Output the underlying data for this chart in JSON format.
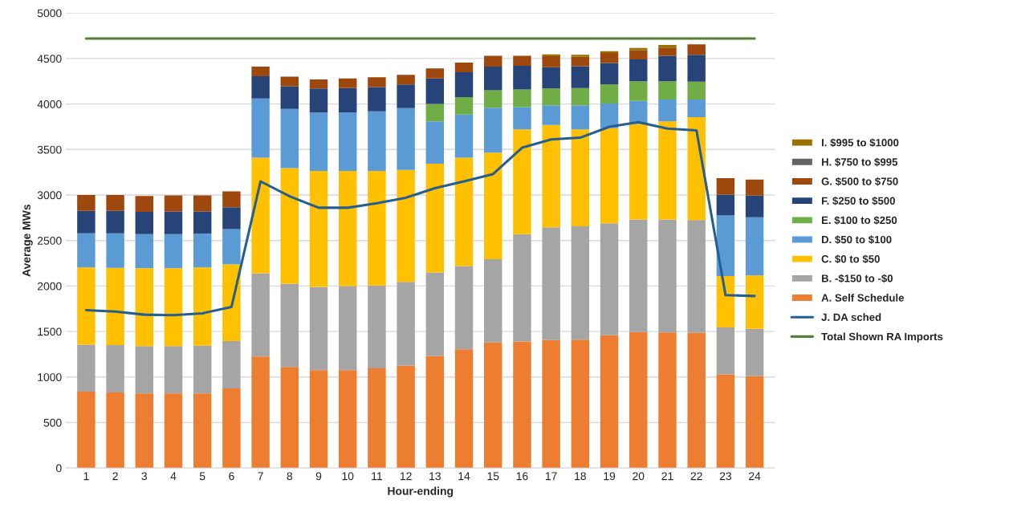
{
  "chart_data": {
    "type": "bar",
    "stacked": true,
    "xlabel": "Hour-ending",
    "ylabel": "Average MWs",
    "categories": [
      "1",
      "2",
      "3",
      "4",
      "5",
      "6",
      "7",
      "8",
      "9",
      "10",
      "11",
      "12",
      "13",
      "14",
      "15",
      "16",
      "17",
      "18",
      "19",
      "20",
      "21",
      "22",
      "23",
      "24"
    ],
    "ylim": [
      0,
      5000
    ],
    "yticks": [
      0,
      500,
      1000,
      1500,
      2000,
      2500,
      3000,
      3500,
      4000,
      4500,
      5000
    ],
    "grid": "y",
    "legend": "right",
    "series": [
      {
        "name": "A. Self Schedule",
        "color": "#ed7d31",
        "values": [
          840,
          830,
          820,
          820,
          820,
          875,
          1225,
          1110,
          1075,
          1075,
          1095,
          1125,
          1230,
          1305,
          1380,
          1390,
          1405,
          1410,
          1460,
          1495,
          1490,
          1485,
          1030,
          1010
        ]
      },
      {
        "name": "B. -$150 to -$0",
        "color": "#a5a5a5",
        "values": [
          515,
          520,
          520,
          520,
          525,
          520,
          915,
          915,
          915,
          925,
          910,
          920,
          920,
          915,
          915,
          1180,
          1240,
          1245,
          1230,
          1235,
          1240,
          1240,
          515,
          520
        ]
      },
      {
        "name": "C. $0 to $50",
        "color": "#ffc000",
        "values": [
          850,
          850,
          855,
          855,
          860,
          845,
          1270,
          1270,
          1275,
          1265,
          1260,
          1230,
          1195,
          1190,
          1170,
          1150,
          1125,
          1065,
          1045,
          1050,
          1080,
          1130,
          565,
          585
        ]
      },
      {
        "name": "D. $50 to $100",
        "color": "#5b9bd5",
        "values": [
          375,
          380,
          375,
          375,
          370,
          385,
          650,
          650,
          640,
          640,
          655,
          680,
          465,
          475,
          495,
          245,
          215,
          265,
          270,
          255,
          240,
          195,
          665,
          640
        ]
      },
      {
        "name": "E. $100 to $250",
        "color": "#70ad47",
        "values": [
          null,
          null,
          null,
          null,
          null,
          null,
          null,
          null,
          null,
          null,
          null,
          null,
          190,
          190,
          190,
          195,
          185,
          190,
          210,
          215,
          200,
          195,
          null,
          null
        ]
      },
      {
        "name": "F. $250 to $500",
        "color": "#264478",
        "values": [
          245,
          245,
          245,
          250,
          245,
          240,
          245,
          250,
          265,
          270,
          265,
          260,
          280,
          275,
          260,
          260,
          235,
          240,
          235,
          240,
          280,
          295,
          230,
          240
        ]
      },
      {
        "name": "G. $500 to $750",
        "color": "#9e480e",
        "values": [
          175,
          175,
          175,
          175,
          175,
          175,
          105,
          105,
          100,
          105,
          110,
          105,
          110,
          105,
          120,
          110,
          120,
          105,
          110,
          100,
          90,
          115,
          180,
          175
        ]
      },
      {
        "name": "H. $750 to $995",
        "color": "#636363",
        "values": [
          null,
          null,
          null,
          null,
          null,
          null,
          null,
          null,
          null,
          null,
          null,
          null,
          null,
          null,
          null,
          null,
          null,
          null,
          null,
          null,
          null,
          null,
          null,
          null
        ]
      },
      {
        "name": "I. $995 to $1000",
        "color": "#997300",
        "values": [
          null,
          null,
          null,
          null,
          null,
          null,
          null,
          null,
          null,
          null,
          null,
          null,
          null,
          null,
          null,
          null,
          20,
          20,
          20,
          25,
          30,
          null,
          null,
          null
        ]
      },
      {
        "name": "J. DA sched",
        "type": "line",
        "color": "#255e91",
        "values": [
          1735,
          1720,
          1685,
          1680,
          1700,
          1770,
          3150,
          2985,
          2860,
          2860,
          2910,
          2970,
          3075,
          3150,
          3230,
          3520,
          3610,
          3630,
          3750,
          3800,
          3730,
          3710,
          1900,
          1890
        ]
      },
      {
        "name": "Total Shown RA Imports",
        "type": "line",
        "color": "#548235",
        "values": [
          4720,
          4720,
          4720,
          4720,
          4720,
          4720,
          4720,
          4720,
          4720,
          4720,
          4720,
          4720,
          4720,
          4720,
          4720,
          4720,
          4720,
          4720,
          4720,
          4720,
          4720,
          4720,
          4720,
          4720
        ]
      }
    ]
  }
}
